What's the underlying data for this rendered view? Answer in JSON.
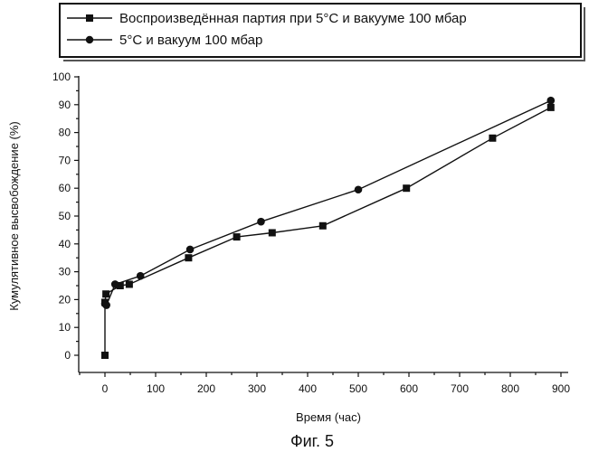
{
  "chart_data": {
    "type": "line",
    "xlabel": "Время (час)",
    "ylabel": "Кумулятивное высвобождение (%)",
    "xlim": [
      -50,
      900
    ],
    "ylim": [
      -5,
      100
    ],
    "x_ticks": [
      0,
      100,
      200,
      300,
      400,
      500,
      600,
      700,
      800,
      900
    ],
    "y_ticks": [
      0,
      10,
      20,
      30,
      40,
      50,
      60,
      70,
      80,
      90,
      100
    ],
    "legend_position": "top",
    "series": [
      {
        "name": "Воспроизведённая партия при 5°C и вакууме 100 мбар",
        "marker": "square",
        "color": "#111111",
        "x": [
          0,
          0,
          2,
          30,
          48,
          165,
          260,
          330,
          430,
          595,
          765,
          880
        ],
        "y": [
          0,
          19,
          22,
          25,
          25.5,
          35,
          42.5,
          44,
          46.5,
          60,
          78,
          89
        ]
      },
      {
        "name": "5°C и вакуум 100 мбар",
        "marker": "circle",
        "color": "#111111",
        "x": [
          0,
          3,
          20,
          70,
          168,
          308,
          500,
          880
        ],
        "y": [
          18.5,
          18,
          25.5,
          28.5,
          38,
          48,
          59.5,
          91.5
        ]
      }
    ]
  },
  "caption": "Фиг. 5"
}
